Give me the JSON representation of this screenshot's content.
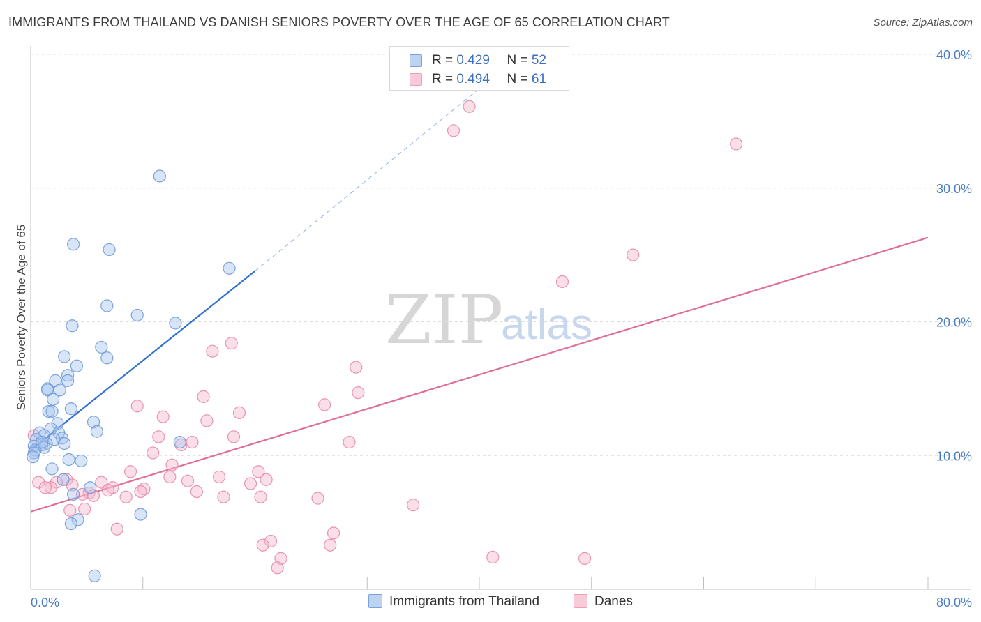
{
  "title": "IMMIGRANTS FROM THAILAND VS DANISH SENIORS POVERTY OVER THE AGE OF 65 CORRELATION CHART",
  "source": "Source: ZipAtlas.com",
  "watermark": {
    "zip": "ZIP",
    "atlas": "atlas"
  },
  "legend": {
    "rows": [
      {
        "r_label": "R = ",
        "r_value": "0.429",
        "n_label": "N = ",
        "n_value": "52"
      },
      {
        "r_label": "R = ",
        "r_value": "0.494",
        "n_label": "N = ",
        "n_value": "61"
      }
    ]
  },
  "colors": {
    "blue_fill": "#a9c6ee",
    "blue_stroke": "#6f9ad8",
    "blue_line": "#2e6fd0",
    "pink_fill": "#f6b9cc",
    "pink_stroke": "#e88aa8",
    "pink_line": "#e06f98",
    "grid": "#dcdcdc",
    "axis": "#bfbfbf",
    "tick_text": "#4a7cc0"
  },
  "chart_data": {
    "type": "scatter",
    "title": "IMMIGRANTS FROM THAILAND VS DANISH SENIORS POVERTY OVER THE AGE OF 65 CORRELATION CHART",
    "xlabel": "",
    "ylabel": "Seniors Poverty Over the Age of 65",
    "xlim": [
      0,
      80
    ],
    "ylim": [
      0,
      40
    ],
    "x_tick_labels": [
      "0.0%",
      "80.0%"
    ],
    "y_ticks": [
      10,
      20,
      30,
      40
    ],
    "y_tick_labels": [
      "10.0%",
      "20.0%",
      "30.0%",
      "40.0%"
    ],
    "legend_position": "bottom",
    "series": [
      {
        "name": "Immigrants from Thailand",
        "color": "#a9c6ee",
        "r": 0.429,
        "n": 52,
        "trend": {
          "x": [
            0,
            20
          ],
          "y": [
            10.4,
            23.8
          ],
          "dashed_to": [
            42,
            38.8
          ]
        },
        "points": [
          [
            11.5,
            30.9
          ],
          [
            3.8,
            25.8
          ],
          [
            7,
            25.4
          ],
          [
            17.7,
            24.0
          ],
          [
            6.8,
            21.2
          ],
          [
            9.5,
            20.5
          ],
          [
            12.9,
            19.9
          ],
          [
            3.7,
            19.7
          ],
          [
            6.3,
            18.1
          ],
          [
            6.8,
            17.3
          ],
          [
            3.0,
            17.4
          ],
          [
            4.1,
            16.7
          ],
          [
            3.3,
            16.0
          ],
          [
            3.3,
            15.6
          ],
          [
            1.5,
            15.0
          ],
          [
            2.2,
            15.6
          ],
          [
            2.6,
            14.9
          ],
          [
            1.5,
            14.9
          ],
          [
            2.0,
            14.2
          ],
          [
            1.6,
            13.3
          ],
          [
            3.6,
            13.5
          ],
          [
            1.9,
            13.3
          ],
          [
            5.6,
            12.5
          ],
          [
            2.4,
            12.4
          ],
          [
            1.8,
            12.0
          ],
          [
            5.9,
            11.8
          ],
          [
            2.5,
            11.7
          ],
          [
            0.8,
            11.7
          ],
          [
            1.2,
            11.5
          ],
          [
            2.8,
            11.3
          ],
          [
            2.1,
            11.2
          ],
          [
            13.3,
            11.0
          ],
          [
            0.5,
            11.2
          ],
          [
            3.0,
            10.9
          ],
          [
            1.4,
            10.9
          ],
          [
            1.0,
            10.8
          ],
          [
            0.3,
            10.7
          ],
          [
            1.2,
            10.6
          ],
          [
            0.4,
            10.4
          ],
          [
            0.3,
            10.2
          ],
          [
            0.2,
            9.9
          ],
          [
            3.4,
            9.7
          ],
          [
            4.5,
            9.6
          ],
          [
            1.9,
            9.0
          ],
          [
            2.9,
            8.2
          ],
          [
            5.3,
            7.6
          ],
          [
            3.8,
            7.1
          ],
          [
            9.8,
            5.6
          ],
          [
            4.2,
            5.2
          ],
          [
            3.6,
            4.9
          ],
          [
            5.7,
            1.0
          ],
          [
            1.0,
            11.0
          ]
        ]
      },
      {
        "name": "Danes",
        "color": "#f6b9cc",
        "r": 0.494,
        "n": 61,
        "trend": {
          "x": [
            0,
            80
          ],
          "y": [
            5.8,
            26.3
          ]
        },
        "points": [
          [
            39.1,
            36.1
          ],
          [
            37.7,
            34.3
          ],
          [
            62.9,
            33.3
          ],
          [
            53.7,
            25.0
          ],
          [
            47.4,
            23.0
          ],
          [
            17.9,
            18.4
          ],
          [
            16.2,
            17.8
          ],
          [
            29.0,
            16.6
          ],
          [
            29.2,
            14.7
          ],
          [
            15.4,
            14.4
          ],
          [
            9.5,
            13.7
          ],
          [
            26.2,
            13.8
          ],
          [
            18.6,
            13.2
          ],
          [
            11.8,
            12.9
          ],
          [
            15.7,
            12.6
          ],
          [
            11.4,
            11.4
          ],
          [
            18.1,
            11.4
          ],
          [
            28.4,
            11.0
          ],
          [
            14.4,
            11.0
          ],
          [
            13.4,
            10.8
          ],
          [
            10.9,
            10.2
          ],
          [
            12.6,
            9.3
          ],
          [
            8.9,
            8.8
          ],
          [
            20.3,
            8.8
          ],
          [
            12.4,
            8.4
          ],
          [
            16.8,
            8.4
          ],
          [
            21.0,
            8.2
          ],
          [
            14.0,
            8.1
          ],
          [
            0.7,
            8.0
          ],
          [
            6.3,
            8.0
          ],
          [
            19.6,
            7.9
          ],
          [
            3.2,
            8.2
          ],
          [
            2.3,
            8.0
          ],
          [
            3.7,
            7.8
          ],
          [
            1.8,
            7.6
          ],
          [
            7.3,
            7.6
          ],
          [
            6.9,
            7.4
          ],
          [
            1.3,
            7.6
          ],
          [
            10.1,
            7.5
          ],
          [
            14.8,
            7.3
          ],
          [
            9.8,
            7.3
          ],
          [
            5.2,
            7.2
          ],
          [
            4.6,
            7.1
          ],
          [
            5.6,
            7.0
          ],
          [
            8.5,
            6.9
          ],
          [
            17.2,
            6.9
          ],
          [
            20.5,
            6.9
          ],
          [
            25.6,
            6.8
          ],
          [
            34.1,
            6.3
          ],
          [
            4.8,
            6.0
          ],
          [
            3.5,
            5.9
          ],
          [
            7.7,
            4.5
          ],
          [
            27.0,
            4.2
          ],
          [
            21.4,
            3.6
          ],
          [
            20.7,
            3.3
          ],
          [
            26.7,
            3.3
          ],
          [
            22.3,
            2.3
          ],
          [
            41.2,
            2.4
          ],
          [
            49.4,
            2.3
          ],
          [
            22.0,
            1.6
          ],
          [
            0.3,
            11.5
          ]
        ]
      }
    ]
  }
}
